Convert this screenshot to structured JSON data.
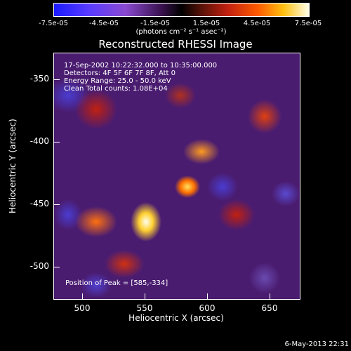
{
  "colorbar": {
    "ticks": [
      "-7.5e-05",
      "-4.5e-05",
      "-1.5e-05",
      "1.5e-05",
      "4.5e-05",
      "7.5e-05"
    ],
    "unit_label": "(photons cm⁻² s⁻¹ asec⁻²)"
  },
  "title": "Reconstructed RHESSI Image",
  "info": {
    "line1": "17-Sep-2002 10:22:32.000 to 10:35:00.000",
    "line2": "Detectors: 4F 5F 6F 7F 8F, Att 0",
    "line3": "Energy Range: 25.0 - 50.0 keV",
    "line4": "Clean    Total counts: 1.08E+04"
  },
  "peak_label": "Position of Peak = [585,-334]",
  "axes": {
    "xlabel": "Heliocentric X (arcsec)",
    "ylabel": "Heliocentric Y (arcsec)",
    "xticks": [
      "500",
      "550",
      "600",
      "650"
    ],
    "yticks": [
      "-350",
      "-400",
      "-450",
      "-500"
    ]
  },
  "footer": "6-May-2013 22:31"
}
